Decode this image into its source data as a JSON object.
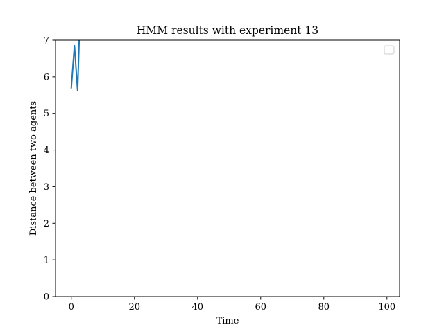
{
  "chart_data": {
    "type": "line",
    "title": "HMM results with experiment 13",
    "xlabel": "Time",
    "ylabel": "Distance between two agents",
    "xlim": [
      -5,
      104
    ],
    "ylim": [
      0,
      7
    ],
    "x_ticks": [
      0,
      20,
      40,
      60,
      80,
      100
    ],
    "x_tick_labels": [
      "0",
      "20",
      "40",
      "60",
      "80",
      "100"
    ],
    "y_ticks": [
      0,
      1,
      2,
      3,
      4,
      5,
      6,
      7
    ],
    "y_tick_labels": [
      "0",
      "1",
      "2",
      "3",
      "4",
      "5",
      "6",
      "7"
    ],
    "grid": false,
    "legend": {
      "placement": "top-right",
      "entries": []
    },
    "series": [
      {
        "color": "#1f77b4",
        "x": [
          0,
          1,
          2,
          2.5
        ],
        "y": [
          5.7,
          6.85,
          5.62,
          7.0
        ]
      }
    ]
  }
}
